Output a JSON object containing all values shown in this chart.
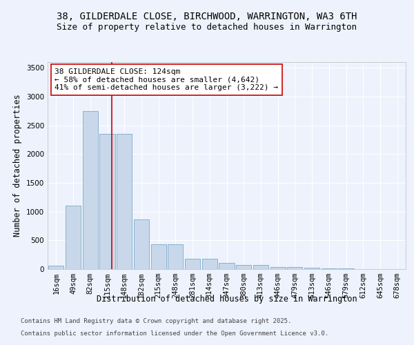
{
  "title_line1": "38, GILDERDALE CLOSE, BIRCHWOOD, WARRINGTON, WA3 6TH",
  "title_line2": "Size of property relative to detached houses in Warrington",
  "xlabel": "Distribution of detached houses by size in Warrington",
  "ylabel": "Number of detached properties",
  "categories": [
    "16sqm",
    "49sqm",
    "82sqm",
    "115sqm",
    "148sqm",
    "182sqm",
    "215sqm",
    "248sqm",
    "281sqm",
    "314sqm",
    "347sqm",
    "380sqm",
    "413sqm",
    "446sqm",
    "479sqm",
    "513sqm",
    "546sqm",
    "579sqm",
    "612sqm",
    "645sqm",
    "678sqm"
  ],
  "values": [
    60,
    1100,
    2750,
    2350,
    2350,
    870,
    430,
    430,
    175,
    175,
    105,
    75,
    75,
    40,
    40,
    20,
    15,
    10,
    5,
    5,
    3
  ],
  "bar_color": "#c8d8ea",
  "bar_edge_color": "#7aaac8",
  "vline_color": "#cc0000",
  "annotation_text": "38 GILDERDALE CLOSE: 124sqm\n← 58% of detached houses are smaller (4,642)\n41% of semi-detached houses are larger (3,222) →",
  "annotation_box_color": "#ffffff",
  "annotation_box_edge": "#cc0000",
  "ylim": [
    0,
    3600
  ],
  "yticks": [
    0,
    500,
    1000,
    1500,
    2000,
    2500,
    3000,
    3500
  ],
  "background_color": "#eef2fc",
  "grid_color": "#ffffff",
  "footer_line1": "Contains HM Land Registry data © Crown copyright and database right 2025.",
  "footer_line2": "Contains public sector information licensed under the Open Government Licence v3.0.",
  "title_fontsize": 10,
  "subtitle_fontsize": 9,
  "axis_label_fontsize": 8.5,
  "tick_fontsize": 7.5,
  "annotation_fontsize": 8,
  "footer_fontsize": 6.5
}
